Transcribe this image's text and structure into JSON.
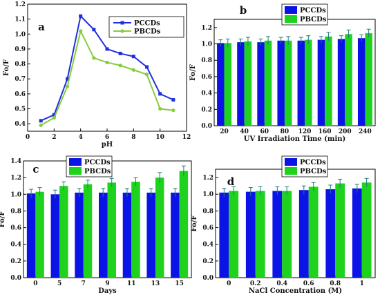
{
  "colors": {
    "pccds_line": "#1f2fe0",
    "pbcds_line": "#86cc3c",
    "pccds_bar": "#0a14e6",
    "pbcds_bar": "#1ed21e",
    "error_bar": "#1f7a7a"
  },
  "chart_data": [
    {
      "type": "line",
      "panel": "a",
      "xlabel": "pH",
      "ylabel": "Fo/F",
      "xlim": [
        0,
        12
      ],
      "ylim": [
        0.35,
        1.2
      ],
      "xticks": [
        0,
        2,
        4,
        6,
        8,
        10,
        12
      ],
      "yticks": [
        0.4,
        0.5,
        0.6,
        0.7,
        0.8,
        0.9,
        1.0,
        1.1,
        1.2
      ],
      "legend_position": "top-right",
      "series": [
        {
          "name": "PCCDs",
          "x": [
            1,
            2,
            3,
            4,
            5,
            6,
            7,
            8,
            9,
            10,
            11
          ],
          "y": [
            0.42,
            0.46,
            0.7,
            1.12,
            1.03,
            0.9,
            0.87,
            0.85,
            0.78,
            0.6,
            0.56
          ]
        },
        {
          "name": "PBCDs",
          "x": [
            1,
            2,
            3,
            4,
            5,
            6,
            7,
            8,
            9,
            10,
            11
          ],
          "y": [
            0.39,
            0.44,
            0.65,
            1.02,
            0.84,
            0.81,
            0.79,
            0.76,
            0.73,
            0.5,
            0.49
          ]
        }
      ]
    },
    {
      "type": "bar",
      "panel": "b",
      "xlabel": "UV Irradiation Time (min)",
      "ylabel": "Fo/F",
      "categories": [
        "20",
        "40",
        "60",
        "80",
        "120",
        "160",
        "200",
        "240"
      ],
      "ylim": [
        0,
        1.3
      ],
      "yticks": [
        0.0,
        0.2,
        0.4,
        0.6,
        0.8,
        1.0,
        1.2
      ],
      "legend_position": "top-center",
      "series": [
        {
          "name": "PCCDs",
          "values": [
            1.01,
            1.02,
            1.02,
            1.04,
            1.04,
            1.05,
            1.06,
            1.07
          ],
          "errors": [
            0.04,
            0.04,
            0.04,
            0.04,
            0.04,
            0.04,
            0.04,
            0.04
          ]
        },
        {
          "name": "PBCDs",
          "values": [
            1.01,
            1.03,
            1.04,
            1.04,
            1.05,
            1.09,
            1.12,
            1.13
          ],
          "errors": [
            0.05,
            0.05,
            0.05,
            0.05,
            0.05,
            0.05,
            0.05,
            0.05
          ]
        }
      ]
    },
    {
      "type": "bar",
      "panel": "c",
      "xlabel": "Days",
      "ylabel": "Fo/F",
      "categories": [
        "0",
        "5",
        "7",
        "9",
        "11",
        "13",
        "15"
      ],
      "ylim": [
        0,
        1.4
      ],
      "yticks": [
        0.0,
        0.2,
        0.4,
        0.6,
        0.8,
        1.0,
        1.2,
        1.4
      ],
      "legend_position": "top-left",
      "series": [
        {
          "name": "PCCDs",
          "values": [
            1.01,
            1.0,
            1.02,
            1.02,
            1.02,
            1.02,
            1.02
          ],
          "errors": [
            0.05,
            0.05,
            0.05,
            0.05,
            0.05,
            0.05,
            0.05
          ]
        },
        {
          "name": "PBCDs",
          "values": [
            1.03,
            1.1,
            1.12,
            1.14,
            1.15,
            1.2,
            1.28
          ],
          "errors": [
            0.05,
            0.05,
            0.05,
            0.05,
            0.05,
            0.06,
            0.06
          ]
        }
      ]
    },
    {
      "type": "bar",
      "panel": "d",
      "xlabel": "NaCl Concentration (M)",
      "ylabel": "Fo/F",
      "categories": [
        "0",
        "0.2",
        "0.4",
        "0.6",
        "0.8",
        "1"
      ],
      "ylim": [
        0,
        1.3
      ],
      "yticks": [
        0.0,
        0.2,
        0.4,
        0.6,
        0.8,
        1.0,
        1.2
      ],
      "legend_position": "top-center",
      "series": [
        {
          "name": "PCCDs",
          "values": [
            1.02,
            1.03,
            1.04,
            1.05,
            1.06,
            1.07
          ],
          "errors": [
            0.05,
            0.05,
            0.05,
            0.05,
            0.05,
            0.05
          ]
        },
        {
          "name": "PBCDs",
          "values": [
            1.04,
            1.04,
            1.04,
            1.09,
            1.13,
            1.14
          ],
          "errors": [
            0.05,
            0.05,
            0.05,
            0.05,
            0.05,
            0.05
          ]
        }
      ]
    }
  ]
}
